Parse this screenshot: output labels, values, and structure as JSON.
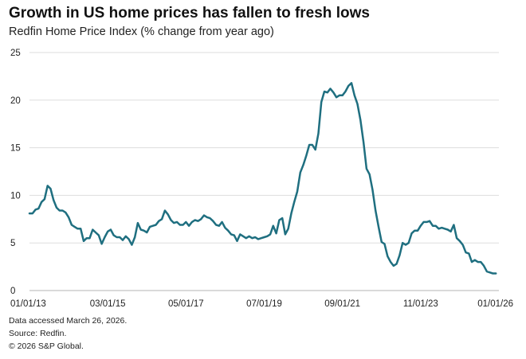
{
  "chart_data": {
    "type": "line",
    "title": "Growth in US home prices has fallen to fresh lows",
    "subtitle": "Redfin Home Price Index (% change from year ago)",
    "xlabel": "",
    "ylabel": "",
    "x_range": [
      "01/01/13",
      "01/01/26"
    ],
    "ylim": [
      0,
      25
    ],
    "y_ticks": [
      0,
      5,
      10,
      15,
      20,
      25
    ],
    "x_ticks": [
      "01/01/13",
      "03/01/15",
      "05/01/17",
      "07/01/19",
      "09/01/21",
      "11/01/23",
      "01/01/26"
    ],
    "grid": true,
    "line_color": "#1f6f80",
    "series": [
      {
        "name": "Redfin Home Price Index",
        "x": [
          2013.0,
          2013.083,
          2013.167,
          2013.25,
          2013.333,
          2013.417,
          2013.5,
          2013.583,
          2013.667,
          2013.75,
          2013.833,
          2013.917,
          2014.0,
          2014.083,
          2014.167,
          2014.25,
          2014.333,
          2014.417,
          2014.5,
          2014.583,
          2014.667,
          2014.75,
          2014.833,
          2014.917,
          2015.0,
          2015.083,
          2015.167,
          2015.25,
          2015.333,
          2015.417,
          2015.5,
          2015.583,
          2015.667,
          2015.75,
          2015.833,
          2015.917,
          2016.0,
          2016.083,
          2016.167,
          2016.25,
          2016.333,
          2016.417,
          2016.5,
          2016.583,
          2016.667,
          2016.75,
          2016.833,
          2016.917,
          2017.0,
          2017.083,
          2017.167,
          2017.25,
          2017.333,
          2017.417,
          2017.5,
          2017.583,
          2017.667,
          2017.75,
          2017.833,
          2017.917,
          2018.0,
          2018.083,
          2018.167,
          2018.25,
          2018.333,
          2018.417,
          2018.5,
          2018.583,
          2018.667,
          2018.75,
          2018.833,
          2018.917,
          2019.0,
          2019.083,
          2019.167,
          2019.25,
          2019.333,
          2019.417,
          2019.5,
          2019.583,
          2019.667,
          2019.75,
          2019.833,
          2019.917,
          2020.0,
          2020.083,
          2020.167,
          2020.25,
          2020.333,
          2020.417,
          2020.5,
          2020.583,
          2020.667,
          2020.75,
          2020.833,
          2020.917,
          2021.0,
          2021.083,
          2021.167,
          2021.25,
          2021.333,
          2021.417,
          2021.5,
          2021.583,
          2021.667,
          2021.75,
          2021.833,
          2021.917,
          2022.0,
          2022.083,
          2022.167,
          2022.25,
          2022.333,
          2022.417,
          2022.5,
          2022.583,
          2022.667,
          2022.75,
          2022.833,
          2022.917,
          2023.0,
          2023.083,
          2023.167,
          2023.25,
          2023.333,
          2023.417,
          2023.5,
          2023.583,
          2023.667,
          2023.75,
          2023.833,
          2023.917,
          2024.0,
          2024.083,
          2024.167,
          2024.25,
          2024.333,
          2024.417,
          2024.5,
          2024.583,
          2024.667,
          2024.75,
          2024.833,
          2024.917,
          2025.0,
          2025.083,
          2025.167,
          2025.25,
          2025.333,
          2025.417,
          2025.5,
          2025.583,
          2025.667,
          2025.75,
          2025.833,
          2025.917
        ],
        "values": [
          8.1,
          8.1,
          8.5,
          8.6,
          9.3,
          9.6,
          11.0,
          10.7,
          9.5,
          8.7,
          8.4,
          8.4,
          8.2,
          7.7,
          6.9,
          6.7,
          6.5,
          6.5,
          5.2,
          5.5,
          5.5,
          6.4,
          6.1,
          5.8,
          4.9,
          5.6,
          6.2,
          6.4,
          5.8,
          5.6,
          5.6,
          5.3,
          5.7,
          5.4,
          4.8,
          5.6,
          7.1,
          6.4,
          6.3,
          6.1,
          6.7,
          6.8,
          6.9,
          7.3,
          7.5,
          8.4,
          8.0,
          7.4,
          7.1,
          7.2,
          6.9,
          6.9,
          7.2,
          6.8,
          7.2,
          7.4,
          7.3,
          7.5,
          7.9,
          7.7,
          7.6,
          7.3,
          6.9,
          6.8,
          7.2,
          6.6,
          6.3,
          5.9,
          5.8,
          5.2,
          5.9,
          5.7,
          5.5,
          5.7,
          5.5,
          5.6,
          5.4,
          5.5,
          5.6,
          5.7,
          5.9,
          6.8,
          6.0,
          7.4,
          7.6,
          5.9,
          6.5,
          8.1,
          9.3,
          10.4,
          12.4,
          13.2,
          14.2,
          15.3,
          15.3,
          14.8,
          16.5,
          19.8,
          20.9,
          20.8,
          21.2,
          20.8,
          20.3,
          20.5,
          20.5,
          20.9,
          21.5,
          21.8,
          20.5,
          19.6,
          17.9,
          15.6,
          12.8,
          12.2,
          10.6,
          8.4,
          6.7,
          5.1,
          4.9,
          3.6,
          3.0,
          2.6,
          2.8,
          3.7,
          5.0,
          4.8,
          5.0,
          6.0,
          6.3,
          6.3,
          6.8,
          7.2,
          7.2,
          7.3,
          6.8,
          6.8,
          6.5,
          6.6,
          6.5,
          6.4,
          6.2,
          6.9,
          5.5,
          5.2,
          4.8,
          4.0,
          3.9,
          3.0,
          3.2,
          3.0,
          3.0,
          2.6,
          2.0,
          1.9,
          1.8,
          1.8
        ]
      }
    ]
  },
  "footer": {
    "line1": "Data accessed March 26, 2026.",
    "line2": "Source: Redfin.",
    "line3": "© 2026 S&P Global."
  }
}
